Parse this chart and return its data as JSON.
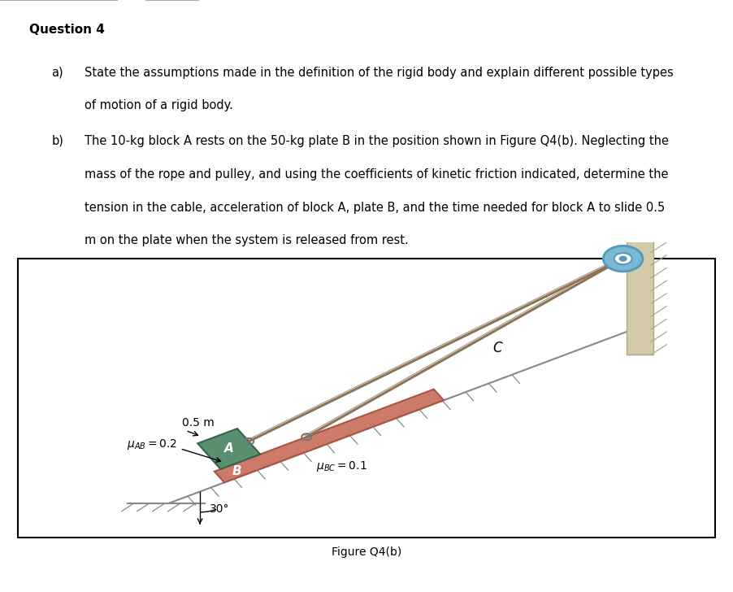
{
  "title": "Question 4",
  "part_a_label": "a)",
  "part_a_text_line1": "State the assumptions made in the definition of the rigid body and explain different possible types",
  "part_a_text_line2": "of motion of a rigid body.",
  "part_b_label": "b)",
  "part_b_text_line1": "The 10-kg block A rests on the 50-kg plate B in the position shown in Figure Q4(b). Neglecting the",
  "part_b_text_line2": "mass of the rope and pulley, and using the coefficients of kinetic friction indicated, determine the",
  "part_b_text_line3": "tension in the cable, acceleration of block A, plate B, and the time needed for block A to slide 0.5",
  "part_b_text_line4": "m on the plate when the system is released from rest.",
  "figure_caption": "Figure Q4(b)",
  "mu_AB_val": "0.2",
  "mu_BC_val": "0.1",
  "angle_label": "30°",
  "distance_label": "0.5 m",
  "label_A": "A",
  "label_B": "B",
  "label_C": "C",
  "bg_color": "#ffffff",
  "plate_color": "#cc7a6a",
  "block_color": "#5a9070",
  "wall_fill_color": "#d4c9a8",
  "wall_hatch_color": "#b0a888",
  "pulley_color": "#7ab8d4",
  "pulley_dark": "#5599bb",
  "rope_color": "#8b7355",
  "ground_color": "#888888",
  "text_color": "#000000",
  "border_color": "#000000"
}
